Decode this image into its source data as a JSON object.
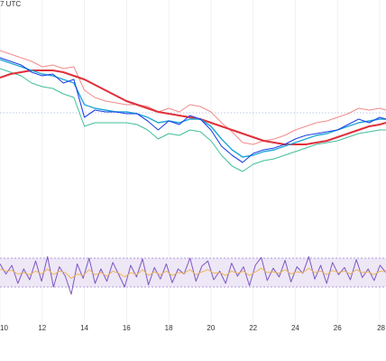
{
  "header": {
    "partial_label": "7 UTC"
  },
  "colors": {
    "price": "#1e40e8",
    "ma_fast": "#22a7d6",
    "band_upper": "#f28b8b",
    "band_lower": "#3fbf9a",
    "ma_slow": "#e0303a",
    "rsi_line": "#7e57c2",
    "rsi_signal": "#f0b24a",
    "rsi_band_fill": "#ede7f6",
    "rsi_band_edge": "#9c7fd1",
    "grid": "#eef0f4",
    "level_line": "#a7b6e8"
  },
  "chart_data": [
    {
      "type": "line",
      "panel": "price",
      "x_ticks": [
        "10",
        "12",
        "14",
        "16",
        "18",
        "20",
        "22",
        "24",
        "26",
        "28"
      ],
      "x": [
        10,
        10.5,
        11,
        11.5,
        12,
        12.5,
        13,
        13.5,
        14,
        14.5,
        15,
        15.5,
        16,
        16.5,
        17,
        17.5,
        18,
        18.5,
        19,
        19.5,
        20,
        20.5,
        21,
        21.5,
        22,
        22.5,
        23,
        23.5,
        24,
        24.5,
        25,
        25.5,
        26,
        26.5,
        27,
        27.5,
        28,
        28.3
      ],
      "xlim": [
        10,
        28.3
      ],
      "ylim": [
        0,
        1
      ],
      "reference_level": 0.575,
      "series": [
        {
          "role": "price",
          "values": [
            0.88,
            0.86,
            0.84,
            0.8,
            0.78,
            0.79,
            0.74,
            0.76,
            0.55,
            0.59,
            0.58,
            0.58,
            0.57,
            0.57,
            0.53,
            0.48,
            0.53,
            0.51,
            0.56,
            0.54,
            0.48,
            0.39,
            0.34,
            0.3,
            0.35,
            0.37,
            0.38,
            0.4,
            0.43,
            0.45,
            0.46,
            0.47,
            0.48,
            0.51,
            0.54,
            0.52,
            0.55,
            0.54
          ]
        },
        {
          "role": "ma_fast",
          "values": [
            0.87,
            0.85,
            0.83,
            0.81,
            0.79,
            0.78,
            0.76,
            0.74,
            0.62,
            0.6,
            0.59,
            0.58,
            0.58,
            0.57,
            0.55,
            0.52,
            0.53,
            0.52,
            0.54,
            0.54,
            0.5,
            0.43,
            0.37,
            0.33,
            0.34,
            0.36,
            0.37,
            0.39,
            0.41,
            0.43,
            0.45,
            0.46,
            0.48,
            0.5,
            0.52,
            0.53,
            0.54,
            0.54
          ]
        },
        {
          "role": "band_upper",
          "values": [
            0.92,
            0.9,
            0.88,
            0.86,
            0.83,
            0.84,
            0.82,
            0.83,
            0.7,
            0.66,
            0.64,
            0.63,
            0.62,
            0.62,
            0.61,
            0.58,
            0.6,
            0.58,
            0.62,
            0.61,
            0.58,
            0.52,
            0.47,
            0.41,
            0.4,
            0.42,
            0.43,
            0.45,
            0.48,
            0.5,
            0.52,
            0.53,
            0.55,
            0.57,
            0.6,
            0.59,
            0.6,
            0.59
          ]
        },
        {
          "role": "band_lower",
          "values": [
            0.82,
            0.8,
            0.78,
            0.74,
            0.72,
            0.71,
            0.68,
            0.66,
            0.5,
            0.52,
            0.52,
            0.52,
            0.52,
            0.51,
            0.48,
            0.43,
            0.46,
            0.45,
            0.48,
            0.47,
            0.42,
            0.34,
            0.28,
            0.25,
            0.29,
            0.31,
            0.32,
            0.34,
            0.36,
            0.38,
            0.4,
            0.41,
            0.42,
            0.44,
            0.46,
            0.47,
            0.48,
            0.48
          ]
        },
        {
          "role": "ma_slow",
          "values": [
            0.77,
            0.79,
            0.8,
            0.81,
            0.81,
            0.81,
            0.8,
            0.78,
            0.76,
            0.73,
            0.7,
            0.67,
            0.64,
            0.62,
            0.6,
            0.58,
            0.57,
            0.56,
            0.55,
            0.54,
            0.52,
            0.5,
            0.48,
            0.46,
            0.44,
            0.42,
            0.41,
            0.4,
            0.4,
            0.4,
            0.41,
            0.42,
            0.44,
            0.46,
            0.48,
            0.5,
            0.51,
            0.52
          ]
        }
      ]
    },
    {
      "type": "line",
      "panel": "oscillator",
      "ylim": [
        0,
        100
      ],
      "band": [
        30,
        70
      ],
      "series": [
        {
          "role": "rsi",
          "values": [
            62,
            48,
            60,
            35,
            55,
            40,
            66,
            38,
            72,
            30,
            58,
            45,
            20,
            62,
            42,
            70,
            35,
            55,
            38,
            64,
            47,
            30,
            60,
            44,
            69,
            33,
            57,
            41,
            62,
            36,
            55,
            48,
            70,
            38,
            59,
            66,
            40,
            52,
            35,
            63,
            45,
            58,
            32,
            60,
            71,
            39,
            56,
            44,
            67,
            37,
            58,
            49,
            72,
            41,
            60,
            35,
            64,
            47,
            57,
            40,
            68,
            43,
            55,
            39,
            60,
            50
          ]
        },
        {
          "role": "signal",
          "values": [
            55,
            52,
            53,
            48,
            50,
            47,
            52,
            48,
            55,
            47,
            52,
            50,
            42,
            48,
            46,
            54,
            47,
            50,
            45,
            52,
            49,
            44,
            50,
            47,
            54,
            46,
            51,
            47,
            52,
            46,
            50,
            49,
            54,
            47,
            51,
            54,
            49,
            50,
            46,
            52,
            49,
            52,
            46,
            51,
            56,
            50,
            51,
            49,
            54,
            48,
            51,
            50,
            56,
            50,
            52,
            47,
            53,
            50,
            52,
            48,
            54,
            50,
            51,
            47,
            52,
            51
          ]
        }
      ]
    }
  ]
}
